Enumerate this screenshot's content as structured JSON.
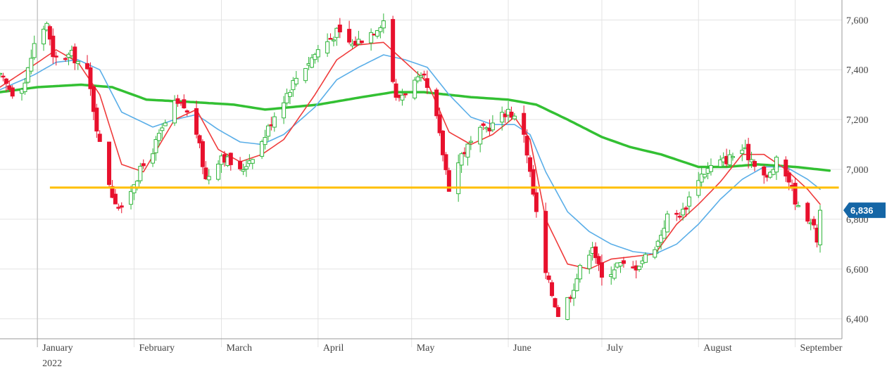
{
  "chart_data": {
    "type": "candlestick",
    "title": "",
    "xlabel": "",
    "ylabel": "",
    "ylim": [
      6320,
      7680
    ],
    "y_ticks": [
      6400,
      6600,
      6800,
      7000,
      7200,
      7400,
      7600
    ],
    "y_tick_labels": [
      "6,400",
      "6,600",
      "6,800",
      "7,000",
      "7,200",
      "7,400",
      "7,600"
    ],
    "x_range": [
      "2021-12-20",
      "2022-09-16"
    ],
    "x_ticks": [
      {
        "date": "2022-01-01",
        "label": "January",
        "sublabel": "2022"
      },
      {
        "date": "2022-02-01",
        "label": "February"
      },
      {
        "date": "2022-03-01",
        "label": "March"
      },
      {
        "date": "2022-04-01",
        "label": "April"
      },
      {
        "date": "2022-05-01",
        "label": "May"
      },
      {
        "date": "2022-06-01",
        "label": "June"
      },
      {
        "date": "2022-07-01",
        "label": "July"
      },
      {
        "date": "2022-08-01",
        "label": "August"
      },
      {
        "date": "2022-09-01",
        "label": "September"
      }
    ],
    "grid": true,
    "last_price_label": "6,836",
    "last_price": 6836,
    "horizontal_line": {
      "value": 6927,
      "from": "2022-01-05",
      "to": "2022-09-15"
    },
    "colors": {
      "up": "#2fb53a",
      "down": "#e8112d",
      "ma_fast": "#ef3b3b",
      "ma_mid": "#5aaee8",
      "ma_slow": "#33c033",
      "support_line": "#ffbf00",
      "price_label_bg": "#1566a6",
      "grid": "#e3e3e3"
    },
    "anchors": [
      [
        "2021-12-20",
        7370
      ],
      [
        "2021-12-24",
        7310
      ],
      [
        "2021-12-28",
        7350
      ],
      [
        "2021-12-31",
        7500
      ],
      [
        "2022-01-04",
        7590
      ],
      [
        "2022-01-06",
        7440
      ],
      [
        "2022-01-12",
        7460
      ],
      [
        "2022-01-17",
        7390
      ],
      [
        "2022-01-21",
        7100
      ],
      [
        "2022-01-25",
        6900
      ],
      [
        "2022-01-28",
        6830
      ],
      [
        "2022-02-01",
        6950
      ],
      [
        "2022-02-07",
        7080
      ],
      [
        "2022-02-14",
        7260
      ],
      [
        "2022-02-17",
        7250
      ],
      [
        "2022-02-21",
        7150
      ],
      [
        "2022-02-24",
        6960
      ],
      [
        "2022-03-01",
        7060
      ],
      [
        "2022-03-07",
        6990
      ],
      [
        "2022-03-14",
        7110
      ],
      [
        "2022-03-18",
        7220
      ],
      [
        "2022-03-25",
        7370
      ],
      [
        "2022-04-01",
        7480
      ],
      [
        "2022-04-07",
        7550
      ],
      [
        "2022-04-12",
        7500
      ],
      [
        "2022-04-19",
        7560
      ],
      [
        "2022-04-22",
        7600
      ],
      [
        "2022-04-26",
        7280
      ],
      [
        "2022-05-02",
        7350
      ],
      [
        "2022-05-05",
        7360
      ],
      [
        "2022-05-09",
        7200
      ],
      [
        "2022-05-13",
        6930
      ],
      [
        "2022-05-17",
        7060
      ],
      [
        "2022-05-23",
        7150
      ],
      [
        "2022-05-27",
        7180
      ],
      [
        "2022-06-01",
        7240
      ],
      [
        "2022-06-06",
        7150
      ],
      [
        "2022-06-09",
        6900
      ],
      [
        "2022-06-13",
        6580
      ],
      [
        "2022-06-17",
        6420
      ],
      [
        "2022-06-21",
        6500
      ],
      [
        "2022-06-24",
        6600
      ],
      [
        "2022-06-28",
        6700
      ],
      [
        "2022-07-01",
        6560
      ],
      [
        "2022-07-06",
        6620
      ],
      [
        "2022-07-11",
        6600
      ],
      [
        "2022-07-15",
        6650
      ],
      [
        "2022-07-19",
        6710
      ],
      [
        "2022-07-22",
        6810
      ],
      [
        "2022-07-27",
        6830
      ],
      [
        "2022-08-01",
        6970
      ],
      [
        "2022-08-05",
        7010
      ],
      [
        "2022-08-10",
        7040
      ],
      [
        "2022-08-15",
        7080
      ],
      [
        "2022-08-19",
        7030
      ],
      [
        "2022-08-23",
        6960
      ],
      [
        "2022-08-26",
        7030
      ],
      [
        "2022-08-30",
        6960
      ],
      [
        "2022-09-02",
        6840
      ],
      [
        "2022-09-06",
        6800
      ],
      [
        "2022-09-08",
        6720
      ],
      [
        "2022-09-09",
        6836
      ]
    ],
    "ma_fast_points": [
      [
        "2021-12-20",
        7330
      ],
      [
        "2021-12-31",
        7420
      ],
      [
        "2022-01-07",
        7480
      ],
      [
        "2022-01-14",
        7430
      ],
      [
        "2022-01-21",
        7300
      ],
      [
        "2022-01-28",
        7020
      ],
      [
        "2022-02-04",
        6990
      ],
      [
        "2022-02-14",
        7200
      ],
      [
        "2022-02-21",
        7240
      ],
      [
        "2022-02-28",
        7080
      ],
      [
        "2022-03-07",
        7030
      ],
      [
        "2022-03-14",
        7060
      ],
      [
        "2022-03-21",
        7120
      ],
      [
        "2022-03-31",
        7300
      ],
      [
        "2022-04-07",
        7440
      ],
      [
        "2022-04-14",
        7500
      ],
      [
        "2022-04-22",
        7510
      ],
      [
        "2022-04-29",
        7430
      ],
      [
        "2022-05-06",
        7350
      ],
      [
        "2022-05-13",
        7150
      ],
      [
        "2022-05-20",
        7100
      ],
      [
        "2022-05-27",
        7140
      ],
      [
        "2022-06-03",
        7210
      ],
      [
        "2022-06-08",
        7120
      ],
      [
        "2022-06-13",
        6800
      ],
      [
        "2022-06-20",
        6620
      ],
      [
        "2022-06-27",
        6600
      ],
      [
        "2022-07-04",
        6640
      ],
      [
        "2022-07-11",
        6650
      ],
      [
        "2022-07-18",
        6660
      ],
      [
        "2022-07-25",
        6780
      ],
      [
        "2022-08-01",
        6860
      ],
      [
        "2022-08-08",
        6950
      ],
      [
        "2022-08-15",
        7060
      ],
      [
        "2022-08-22",
        7060
      ],
      [
        "2022-08-29",
        7000
      ],
      [
        "2022-09-05",
        6920
      ],
      [
        "2022-09-09",
        6860
      ]
    ],
    "ma_mid_points": [
      [
        "2021-12-20",
        7320
      ],
      [
        "2021-12-31",
        7380
      ],
      [
        "2022-01-07",
        7430
      ],
      [
        "2022-01-14",
        7440
      ],
      [
        "2022-01-21",
        7400
      ],
      [
        "2022-01-28",
        7230
      ],
      [
        "2022-02-07",
        7170
      ],
      [
        "2022-02-14",
        7200
      ],
      [
        "2022-02-21",
        7220
      ],
      [
        "2022-02-28",
        7160
      ],
      [
        "2022-03-07",
        7110
      ],
      [
        "2022-03-14",
        7100
      ],
      [
        "2022-03-21",
        7140
      ],
      [
        "2022-03-31",
        7250
      ],
      [
        "2022-04-07",
        7360
      ],
      [
        "2022-04-14",
        7410
      ],
      [
        "2022-04-22",
        7460
      ],
      [
        "2022-04-29",
        7440
      ],
      [
        "2022-05-06",
        7410
      ],
      [
        "2022-05-13",
        7300
      ],
      [
        "2022-05-20",
        7210
      ],
      [
        "2022-05-27",
        7180
      ],
      [
        "2022-06-03",
        7180
      ],
      [
        "2022-06-08",
        7140
      ],
      [
        "2022-06-13",
        6990
      ],
      [
        "2022-06-20",
        6830
      ],
      [
        "2022-06-27",
        6750
      ],
      [
        "2022-07-04",
        6700
      ],
      [
        "2022-07-11",
        6670
      ],
      [
        "2022-07-18",
        6660
      ],
      [
        "2022-07-25",
        6700
      ],
      [
        "2022-08-01",
        6780
      ],
      [
        "2022-08-08",
        6880
      ],
      [
        "2022-08-15",
        6960
      ],
      [
        "2022-08-22",
        7010
      ],
      [
        "2022-08-29",
        7010
      ],
      [
        "2022-09-05",
        6960
      ],
      [
        "2022-09-09",
        6920
      ]
    ],
    "ma_slow_points": [
      [
        "2021-12-20",
        7310
      ],
      [
        "2022-01-01",
        7330
      ],
      [
        "2022-01-15",
        7340
      ],
      [
        "2022-01-25",
        7330
      ],
      [
        "2022-02-05",
        7280
      ],
      [
        "2022-02-20",
        7270
      ],
      [
        "2022-03-05",
        7260
      ],
      [
        "2022-03-15",
        7240
      ],
      [
        "2022-04-01",
        7260
      ],
      [
        "2022-04-15",
        7290
      ],
      [
        "2022-04-25",
        7310
      ],
      [
        "2022-05-05",
        7310
      ],
      [
        "2022-05-20",
        7290
      ],
      [
        "2022-06-01",
        7280
      ],
      [
        "2022-06-10",
        7260
      ],
      [
        "2022-06-20",
        7200
      ],
      [
        "2022-07-01",
        7130
      ],
      [
        "2022-07-10",
        7090
      ],
      [
        "2022-07-20",
        7060
      ],
      [
        "2022-08-01",
        7010
      ],
      [
        "2022-08-10",
        7010
      ],
      [
        "2022-08-20",
        7020
      ],
      [
        "2022-09-01",
        7010
      ],
      [
        "2022-09-12",
        6995
      ]
    ]
  }
}
